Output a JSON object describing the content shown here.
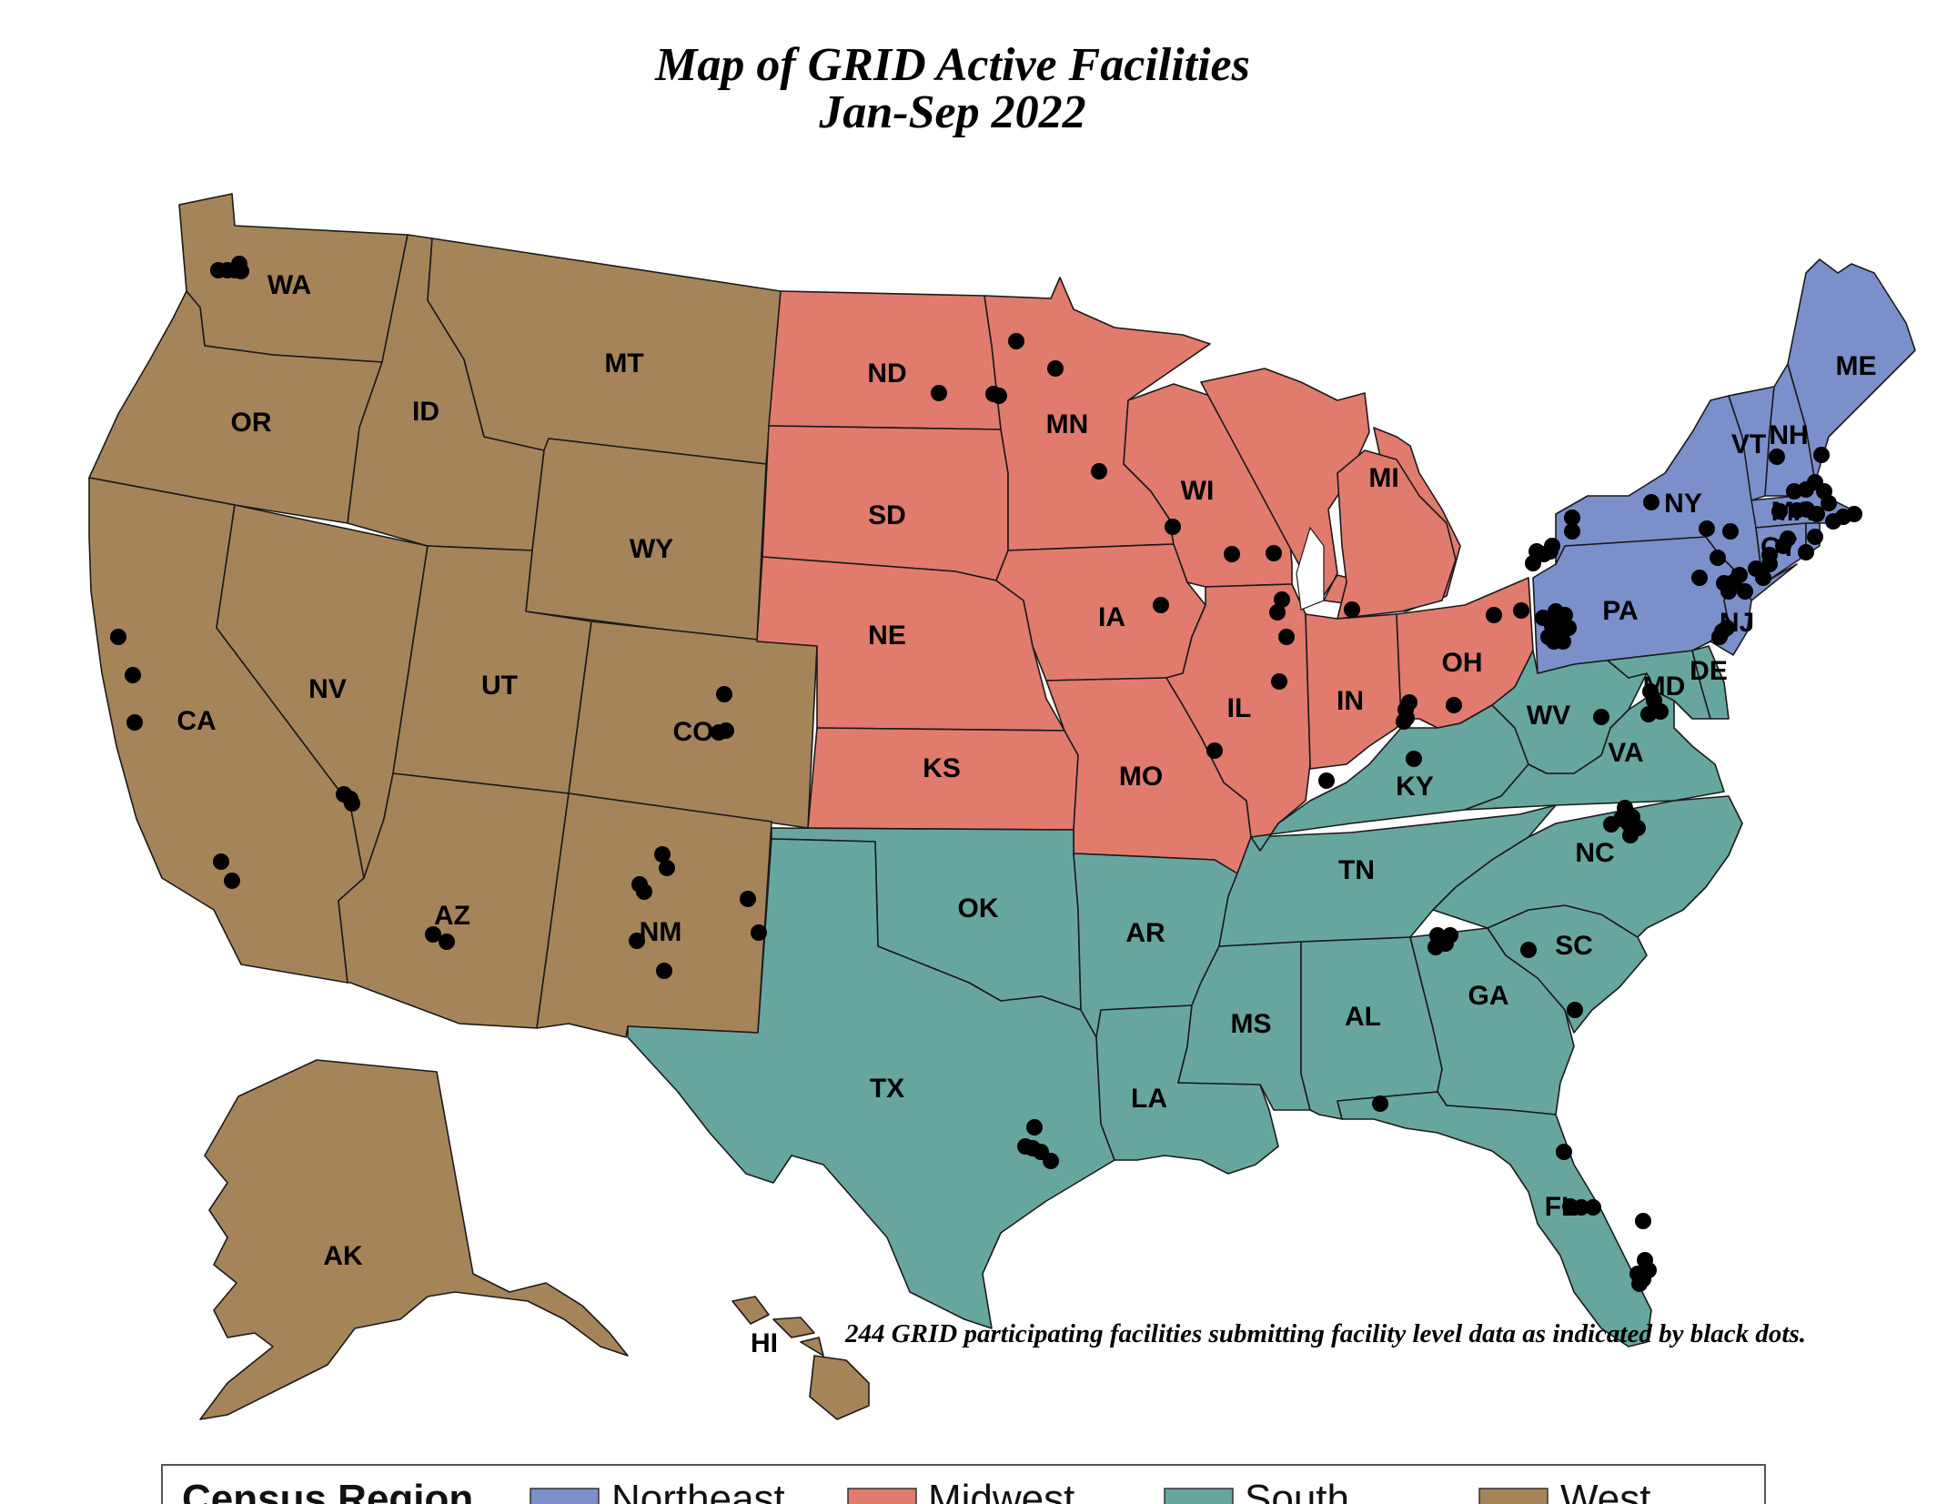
{
  "title_line1": "Map of GRID Active Facilities",
  "title_line2": "Jan-Sep 2022",
  "note": "244 GRID participating facilities submitting facility level data as indicated by black dots.",
  "legend": {
    "title": "Census Region",
    "items": [
      {
        "label": "Northeast",
        "color": "#7b8fca"
      },
      {
        "label": "Midwest",
        "color": "#e07b6e"
      },
      {
        "label": "South",
        "color": "#67a69f"
      },
      {
        "label": "West",
        "color": "#a6845a"
      }
    ]
  },
  "regions": {
    "west": {
      "color": "#a6845a"
    },
    "midwest": {
      "color": "#e07b6e"
    },
    "south": {
      "color": "#67a69f"
    },
    "northeast": {
      "color": "#7b8fca"
    }
  },
  "state_labels": [
    "WA",
    "OR",
    "ID",
    "MT",
    "WY",
    "CA",
    "NV",
    "UT",
    "CO",
    "AZ",
    "NM",
    "AK",
    "HI",
    "ND",
    "SD",
    "NE",
    "KS",
    "MN",
    "IA",
    "MO",
    "WI",
    "IL",
    "MI",
    "IN",
    "OH",
    "OK",
    "TX",
    "AR",
    "LA",
    "MS",
    "AL",
    "TN",
    "KY",
    "GA",
    "FL",
    "SC",
    "NC",
    "VA",
    "WV",
    "MD",
    "DE",
    "ME",
    "NH",
    "VT",
    "NY",
    "PA",
    "NJ",
    "CT",
    "MA"
  ],
  "facility_count": 244
}
